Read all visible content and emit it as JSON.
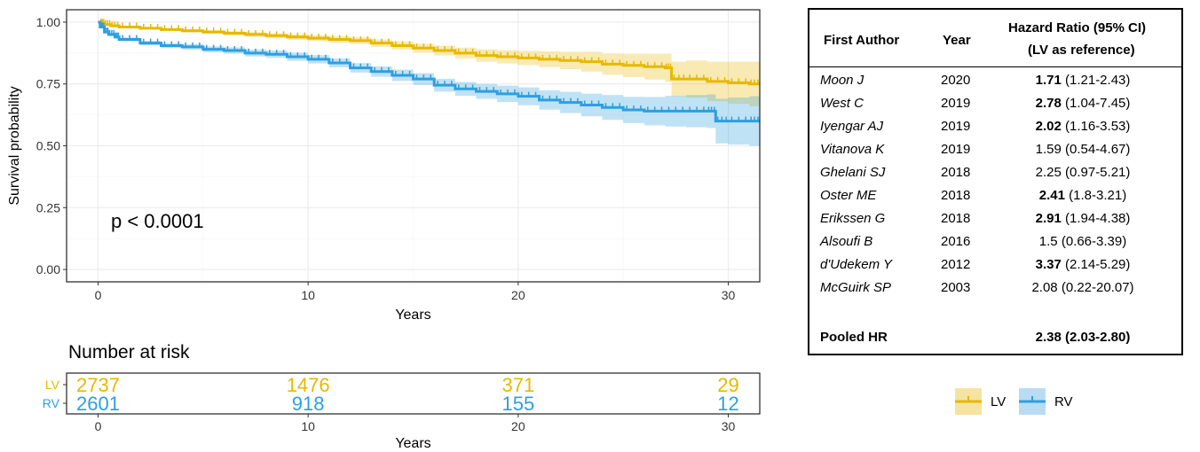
{
  "chart_data": {
    "type": "line",
    "subtype": "kaplan-meier",
    "ylabel": "Survival probability",
    "xlabel": "Years",
    "xlim": [
      -1.5,
      31.5
    ],
    "ylim": [
      -0.05,
      1.05
    ],
    "x_ticks": [
      0,
      10,
      20,
      30
    ],
    "x_tick_labels": [
      "0",
      "10",
      "20",
      "30"
    ],
    "y_ticks": [
      0,
      0.25,
      0.5,
      0.75,
      1.0
    ],
    "y_tick_labels": [
      "0.00",
      "0.25",
      "0.50",
      "0.75",
      "1.00"
    ],
    "grid": true,
    "annotation": "p < 0.0001",
    "series": [
      {
        "name": "LV",
        "color": "#E7B800",
        "x": [
          0,
          0.1,
          0.3,
          0.6,
          1,
          2,
          3,
          4,
          5,
          6,
          7,
          8,
          9,
          10,
          11,
          12,
          13,
          14,
          15,
          16,
          17,
          18,
          19,
          20,
          21,
          22,
          23,
          24,
          25,
          26,
          27,
          27.3,
          28,
          29,
          30,
          31,
          31.5
        ],
        "y": [
          1.0,
          0.995,
          0.99,
          0.985,
          0.98,
          0.975,
          0.97,
          0.965,
          0.96,
          0.955,
          0.95,
          0.945,
          0.94,
          0.935,
          0.93,
          0.925,
          0.915,
          0.905,
          0.895,
          0.885,
          0.875,
          0.865,
          0.86,
          0.855,
          0.85,
          0.845,
          0.84,
          0.83,
          0.825,
          0.82,
          0.815,
          0.77,
          0.77,
          0.76,
          0.755,
          0.75,
          0.75
        ],
        "ci_lower": [
          1.0,
          0.992,
          0.987,
          0.981,
          0.976,
          0.97,
          0.965,
          0.959,
          0.953,
          0.947,
          0.941,
          0.935,
          0.929,
          0.923,
          0.917,
          0.911,
          0.9,
          0.889,
          0.877,
          0.865,
          0.853,
          0.84,
          0.833,
          0.826,
          0.818,
          0.81,
          0.8,
          0.787,
          0.778,
          0.768,
          0.758,
          0.7,
          0.695,
          0.68,
          0.67,
          0.66,
          0.66
        ],
        "ci_upper": [
          1.0,
          0.998,
          0.993,
          0.989,
          0.984,
          0.98,
          0.975,
          0.971,
          0.967,
          0.963,
          0.959,
          0.955,
          0.951,
          0.947,
          0.943,
          0.939,
          0.93,
          0.921,
          0.913,
          0.905,
          0.897,
          0.89,
          0.887,
          0.884,
          0.882,
          0.88,
          0.88,
          0.873,
          0.872,
          0.872,
          0.872,
          0.84,
          0.845,
          0.84,
          0.84,
          0.84,
          0.84
        ]
      },
      {
        "name": "RV",
        "color": "#2E9FDF",
        "x": [
          0,
          0.1,
          0.3,
          0.5,
          0.8,
          1,
          2,
          3,
          4,
          5,
          6,
          7,
          8,
          9,
          10,
          11,
          12,
          13,
          14,
          15,
          16,
          17,
          18,
          19,
          20,
          21,
          22,
          23,
          24,
          25,
          26,
          27,
          28,
          29,
          29.4,
          30,
          31,
          31.5
        ],
        "y": [
          1.0,
          0.98,
          0.96,
          0.95,
          0.94,
          0.93,
          0.915,
          0.905,
          0.9,
          0.89,
          0.885,
          0.875,
          0.87,
          0.86,
          0.85,
          0.835,
          0.815,
          0.8,
          0.785,
          0.77,
          0.745,
          0.73,
          0.72,
          0.71,
          0.7,
          0.685,
          0.675,
          0.665,
          0.655,
          0.645,
          0.64,
          0.64,
          0.64,
          0.64,
          0.6,
          0.6,
          0.6,
          0.6
        ],
        "ci_lower": [
          1.0,
          0.975,
          0.954,
          0.943,
          0.933,
          0.922,
          0.906,
          0.895,
          0.889,
          0.878,
          0.872,
          0.861,
          0.855,
          0.844,
          0.833,
          0.817,
          0.796,
          0.779,
          0.762,
          0.746,
          0.719,
          0.702,
          0.69,
          0.677,
          0.664,
          0.646,
          0.632,
          0.619,
          0.605,
          0.592,
          0.583,
          0.578,
          0.575,
          0.572,
          0.51,
          0.505,
          0.5,
          0.5
        ],
        "ci_upper": [
          1.0,
          0.985,
          0.966,
          0.957,
          0.947,
          0.938,
          0.924,
          0.915,
          0.911,
          0.902,
          0.898,
          0.889,
          0.885,
          0.876,
          0.867,
          0.853,
          0.834,
          0.821,
          0.808,
          0.794,
          0.771,
          0.758,
          0.75,
          0.743,
          0.736,
          0.724,
          0.718,
          0.711,
          0.705,
          0.698,
          0.697,
          0.702,
          0.705,
          0.708,
          0.69,
          0.695,
          0.7,
          0.7
        ]
      }
    ],
    "risk_table": {
      "title": "Number at risk",
      "xlabel": "Years",
      "times": [
        0,
        10,
        20,
        30
      ],
      "rows": [
        {
          "label": "LV",
          "color": "#E7B800",
          "values": [
            "2737",
            "1476",
            "371",
            "29"
          ]
        },
        {
          "label": "RV",
          "color": "#2E9FDF",
          "values": [
            "2601",
            "918",
            "155",
            "12"
          ]
        }
      ]
    }
  },
  "table": {
    "headers": {
      "author": "First Author",
      "year": "Year",
      "hr_line1": "Hazard Ratio (95% CI)",
      "hr_line2": "(LV as reference)"
    },
    "rows": [
      {
        "author": "Moon J",
        "year": "2020",
        "hr": "1.71",
        "ci": "(1.21-2.43)",
        "bold": true
      },
      {
        "author": "West C",
        "year": "2019",
        "hr": "2.78",
        "ci": "(1.04-7.45)",
        "bold": true
      },
      {
        "author": "Iyengar AJ",
        "year": "2019",
        "hr": "2.02",
        "ci": "(1.16-3.53)",
        "bold": true
      },
      {
        "author": "Vitanova K",
        "year": "2019",
        "hr": "1.59",
        "ci": "(0.54-4.67)",
        "bold": false
      },
      {
        "author": "Ghelani SJ",
        "year": "2018",
        "hr": "2.25",
        "ci": "(0.97-5.21)",
        "bold": false
      },
      {
        "author": "Oster ME",
        "year": "2018",
        "hr": "2.41",
        "ci": "(1.8-3.21)",
        "bold": true
      },
      {
        "author": "Erikssen G",
        "year": "2018",
        "hr": "2.91",
        "ci": "(1.94-4.38)",
        "bold": true
      },
      {
        "author": "Alsoufi B",
        "year": "2016",
        "hr": "1.5",
        "ci": "(0.66-3.39)",
        "bold": false
      },
      {
        "author": "d'Udekem Y",
        "year": "2012",
        "hr": "3.37",
        "ci": "(2.14-5.29)",
        "bold": true
      },
      {
        "author": "McGuirk SP",
        "year": "2003",
        "hr": "2.08",
        "ci": "(0.22-20.07)",
        "bold": false
      }
    ],
    "pooled": {
      "label": "Pooled HR",
      "value": "2.38 (2.03-2.80)"
    }
  },
  "legend": {
    "items": [
      {
        "label": "LV",
        "color": "#E7B800",
        "fill": "#F5E3A1"
      },
      {
        "label": "RV",
        "color": "#2E9FDF",
        "fill": "#B9DCF3"
      }
    ]
  }
}
